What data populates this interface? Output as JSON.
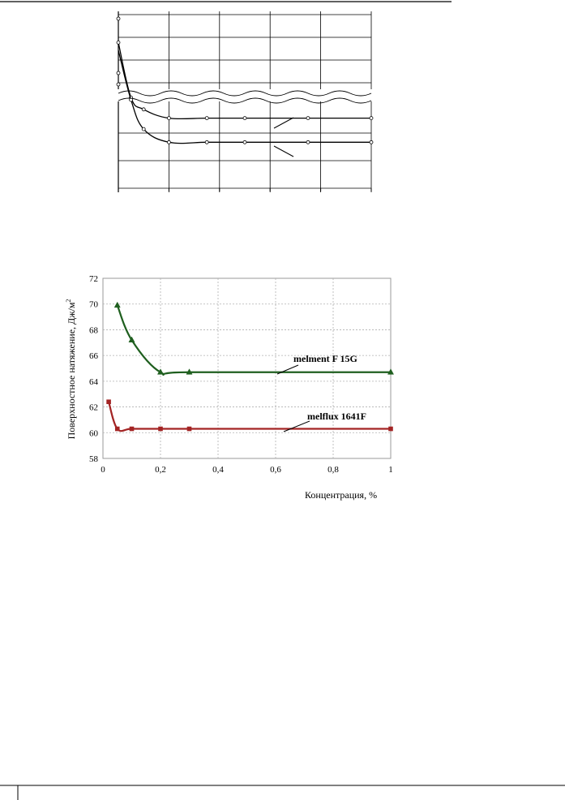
{
  "chart_data": [
    {
      "type": "line",
      "x": [
        0.0,
        0.05,
        0.1,
        0.2,
        0.35,
        0.5,
        0.75,
        1.0
      ],
      "axis_break": true,
      "grid": true,
      "series": [
        {
          "values": [
            112,
            56,
            36,
            32,
            32,
            32,
            32,
            32
          ]
        },
        {
          "values": [
            110,
            44,
            27,
            21,
            21,
            21,
            21,
            21
          ]
        }
      ]
    },
    {
      "type": "line",
      "xlabel": "Концентрация, %",
      "ylabel": "Поверхностное натяжение, Дж/м",
      "ylabel_superscript": "2",
      "xlim": [
        0,
        1
      ],
      "ylim": [
        58,
        72
      ],
      "x_ticks": [
        "0",
        "0,2",
        "0,4",
        "0,6",
        "0,8",
        "1"
      ],
      "y_ticks": [
        "58",
        "60",
        "62",
        "64",
        "66",
        "68",
        "70",
        "72"
      ],
      "grid": true,
      "legend": "labels on chart",
      "series": [
        {
          "name": "melment F 15G",
          "color": "#1f5f1f",
          "marker": "triangle",
          "x": [
            0.05,
            0.1,
            0.2,
            0.3,
            1.0
          ],
          "values": [
            69.9,
            67.2,
            64.7,
            64.7,
            64.7
          ]
        },
        {
          "name": "melflux 1641F",
          "color": "#a32424",
          "marker": "square",
          "x": [
            0.02,
            0.05,
            0.1,
            0.2,
            0.3,
            1.0
          ],
          "values": [
            62.4,
            60.3,
            60.3,
            60.3,
            60.3,
            60.3
          ]
        }
      ]
    }
  ]
}
